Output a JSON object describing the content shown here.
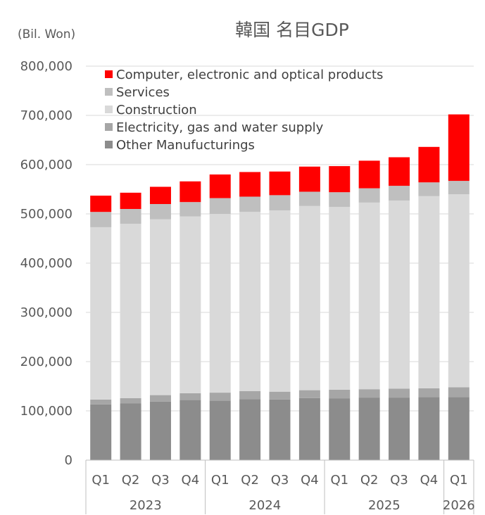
{
  "chart_data": {
    "type": "bar",
    "stacked": true,
    "title": "韓国 名目GDP",
    "ylabel": "(Bil. Won)",
    "ylim": [
      0,
      800000
    ],
    "yticks": [
      0,
      100000,
      200000,
      300000,
      400000,
      500000,
      600000,
      700000,
      800000
    ],
    "ytick_labels": [
      "0",
      "100,000",
      "200,000",
      "300,000",
      "400,000",
      "500,000",
      "600,000",
      "700,000",
      "800,000"
    ],
    "grid": true,
    "legend_position": "top-left",
    "categories": [
      "Q1",
      "Q2",
      "Q3",
      "Q4",
      "Q1",
      "Q2",
      "Q3",
      "Q4",
      "Q1",
      "Q2",
      "Q3",
      "Q4",
      "Q1"
    ],
    "year_groups": [
      {
        "label": "2023",
        "start": 0,
        "count": 4
      },
      {
        "label": "2024",
        "start": 4,
        "count": 4
      },
      {
        "label": "2025",
        "start": 8,
        "count": 4
      },
      {
        "label": "2026",
        "start": 12,
        "count": 1
      }
    ],
    "series": [
      {
        "name": "Other Manufucturings",
        "color": "#8c8c8c",
        "values": [
          113000,
          115000,
          119000,
          122000,
          121000,
          124000,
          123000,
          126000,
          125000,
          127000,
          127000,
          128000,
          128000
        ]
      },
      {
        "name": "Electricity, gas and water supply",
        "color": "#a6a6a6",
        "values": [
          10000,
          11000,
          13000,
          14000,
          16000,
          16000,
          16000,
          16000,
          18000,
          17000,
          18000,
          18000,
          20000
        ]
      },
      {
        "name": "Construction",
        "color": "#d9d9d9",
        "values": [
          350000,
          354000,
          357000,
          359000,
          363000,
          364000,
          368000,
          374000,
          371000,
          379000,
          382000,
          390000,
          392000
        ]
      },
      {
        "name": "Services",
        "color": "#bfbfbf",
        "values": [
          31000,
          30000,
          31000,
          29000,
          32000,
          31000,
          31000,
          29000,
          30000,
          29000,
          30000,
          28000,
          27000
        ]
      },
      {
        "name": "Computer, electronic and optical products",
        "color": "#ff0000",
        "values": [
          33000,
          33000,
          35000,
          42000,
          48000,
          50000,
          48000,
          51000,
          53000,
          56000,
          58000,
          72000,
          135000
        ]
      }
    ],
    "legend_order": [
      "Computer, electronic and optical products",
      "Services",
      "Construction",
      "Electricity, gas and water supply",
      "Other Manufucturings"
    ]
  }
}
